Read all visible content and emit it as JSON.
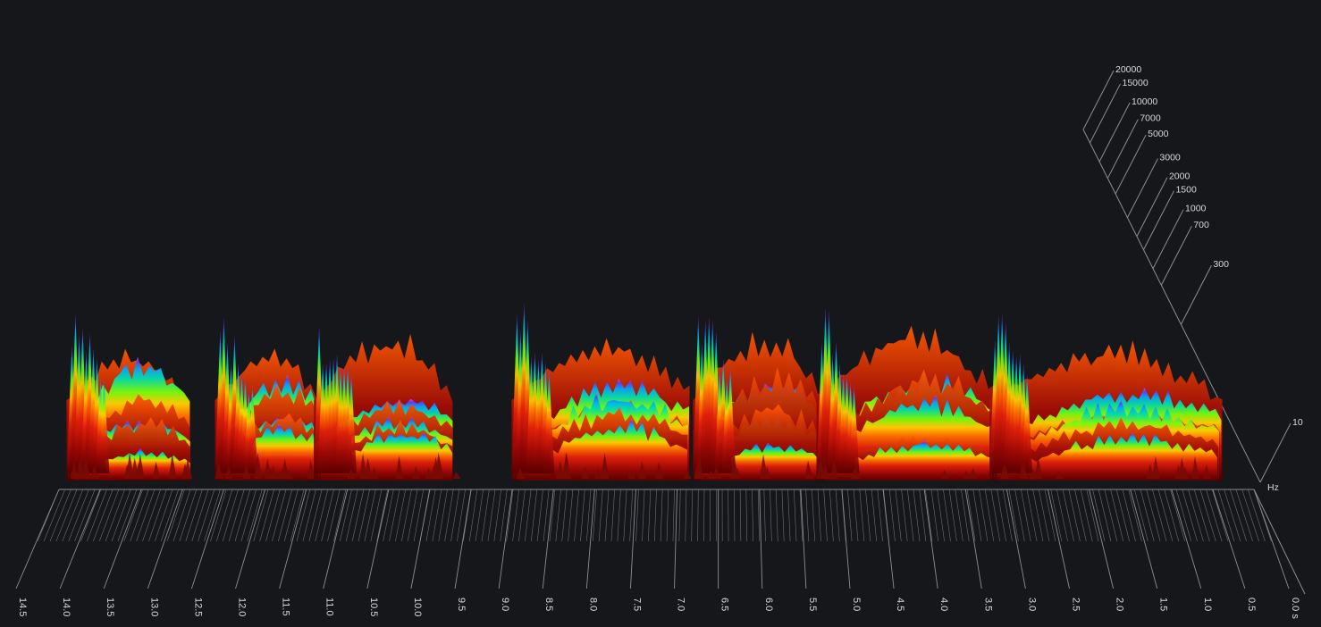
{
  "chart_data": {
    "type": "area",
    "title": "",
    "xlabel": "",
    "ylabel": "",
    "time_axis": {
      "direction": "descending-left-to-right",
      "ticks": [
        "14.5",
        "14.0",
        "13.5",
        "13.0",
        "12.5",
        "12.0",
        "11.5",
        "11.0",
        "10.5",
        "10.0",
        "9.5",
        "9.0",
        "8.5",
        "8.0",
        "7.5",
        "7.0",
        "6.5",
        "6.0",
        "5.5",
        "5.0",
        "4.5",
        "4.0",
        "3.5",
        "3.0",
        "2.5",
        "2.0",
        "1.5",
        "1.0",
        "0.5",
        "0.0 s"
      ],
      "range": [
        14.5,
        0
      ]
    },
    "frequency_axis": {
      "unit": "Hz",
      "scale": "log",
      "ticks": [
        "20000",
        "15000",
        "10000",
        "7000",
        "5000",
        "3000",
        "2000",
        "1500",
        "1000",
        "700",
        "300",
        "10"
      ],
      "range": [
        10,
        20000
      ]
    },
    "colormap": [
      "#8b0000",
      "#d11a0a",
      "#ff6a00",
      "#ffd000",
      "#7dff00",
      "#00e09a",
      "#00b8ff",
      "#4a3cff",
      "#c040ff"
    ],
    "description_free": true,
    "bursts": [
      {
        "t_start": 14.3,
        "t_end": 12.9,
        "peak_level": 0.95
      },
      {
        "t_start": 12.5,
        "t_end": 11.3,
        "peak_level": 0.9
      },
      {
        "t_start": 11.3,
        "t_end": 9.7,
        "peak_level": 0.85
      },
      {
        "t_start": 8.9,
        "t_end": 6.8,
        "peak_level": 1.0
      },
      {
        "t_start": 6.7,
        "t_end": 5.2,
        "peak_level": 1.0
      },
      {
        "t_start": 5.2,
        "t_end": 3.1,
        "peak_level": 0.95
      },
      {
        "t_start": 3.1,
        "t_end": 0.3,
        "peak_level": 0.95
      }
    ]
  }
}
